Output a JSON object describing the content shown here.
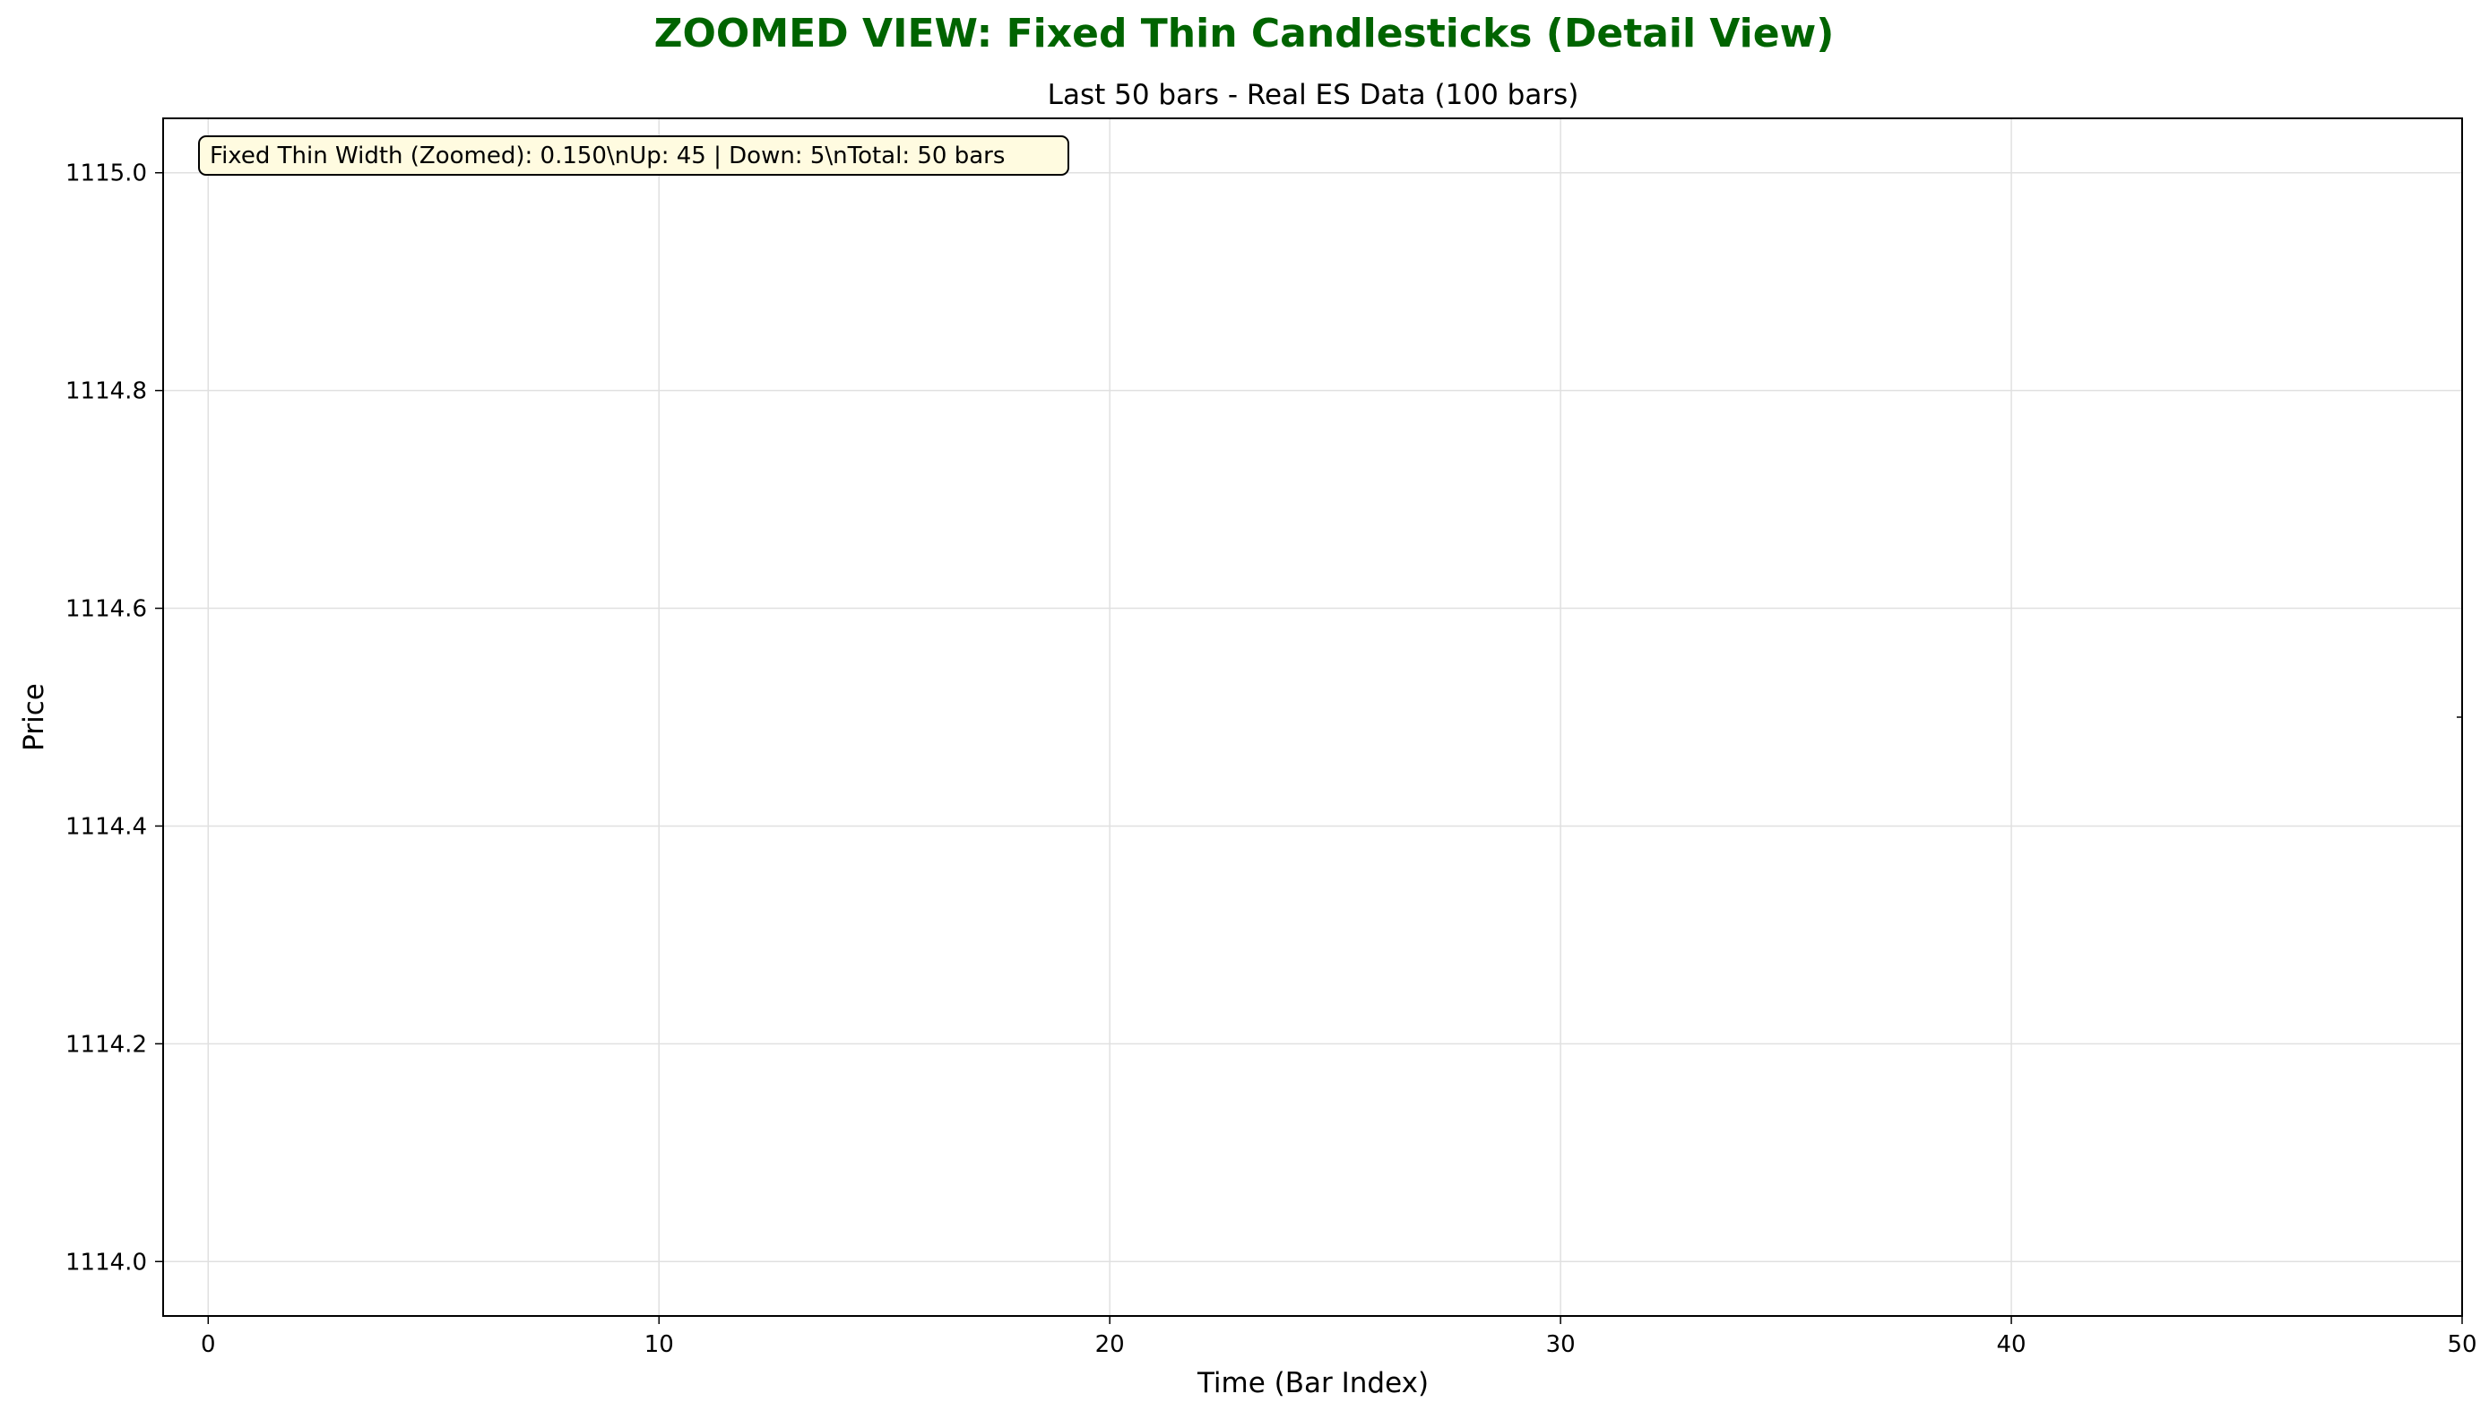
{
  "chart_data": {
    "type": "candlestick",
    "suptitle": "ZOOMED VIEW: Fixed Thin Candlesticks (Detail View)",
    "title": "Last 50 bars - Real ES Data (100 bars)",
    "xlabel": "Time (Bar Index)",
    "ylabel": "Price",
    "xlim": [
      -1,
      50
    ],
    "ylim": [
      1113.95,
      1115.05
    ],
    "xticks": [
      0,
      10,
      20,
      30,
      40,
      50
    ],
    "xtick_labels": [
      "0",
      "10",
      "20",
      "30",
      "40",
      "50"
    ],
    "yticks": [
      1114.0,
      1114.2,
      1114.4,
      1114.6,
      1114.8,
      1115.0
    ],
    "ytick_labels": [
      "1114.0",
      "1114.2",
      "1114.4",
      "1114.6",
      "1114.8",
      "1115.0"
    ],
    "grid": true,
    "annotation": "Fixed Thin Width (Zoomed): 0.150\\nUp: 45 | Down: 5\\nTotal: 50 bars",
    "visible_marks": [
      {
        "x": 50,
        "y": 1114.5
      }
    ],
    "colors": {
      "suptitle": "#006400",
      "grid": "#e0e0e0",
      "annotation_bg": "#fffbe0",
      "axes": "#000000"
    }
  }
}
